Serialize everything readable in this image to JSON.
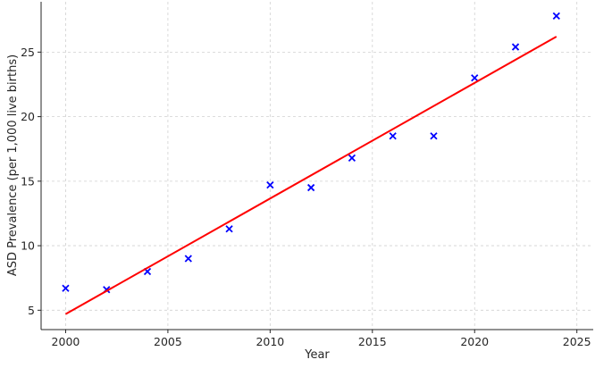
{
  "chart_data": {
    "type": "scatter",
    "xlabel": "Year",
    "ylabel": "ASD Prevalence (per 1,000 live births)",
    "xlim": [
      1998.8,
      2025.8
    ],
    "ylim": [
      3.5,
      28.9
    ],
    "xticks": [
      2000,
      2005,
      2010,
      2015,
      2020,
      2025
    ],
    "yticks": [
      5,
      10,
      15,
      20,
      25
    ],
    "grid": true,
    "series": [
      {
        "kind": "scatter",
        "marker": "x",
        "color": "#0000ff",
        "x": [
          2000,
          2002,
          2004,
          2006,
          2008,
          2010,
          2012,
          2014,
          2016,
          2018,
          2020,
          2022,
          2024
        ],
        "y": [
          6.7,
          6.6,
          8.0,
          9.0,
          11.3,
          14.7,
          14.5,
          16.8,
          18.5,
          18.5,
          23.0,
          25.4,
          27.8
        ]
      },
      {
        "kind": "line",
        "color": "#ff0000",
        "x": [
          2000,
          2024
        ],
        "y": [
          4.7,
          26.2
        ]
      }
    ]
  }
}
